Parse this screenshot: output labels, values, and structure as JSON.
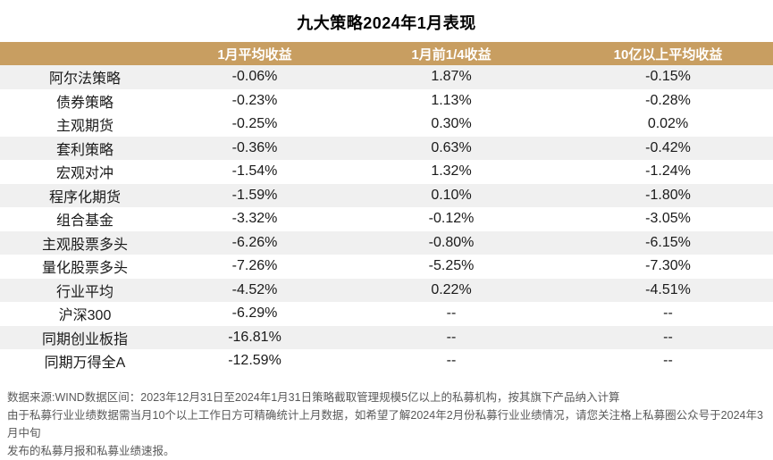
{
  "title": "九大策略2024年1月表现",
  "chart_data": {
    "type": "table",
    "title": "九大策略2024年1月表现",
    "columns": [
      "",
      "1月平均收益",
      "1月前1/4收益",
      "10亿以上平均收益"
    ],
    "rows": [
      {
        "name": "阿尔法策略",
        "values": [
          "-0.06%",
          "1.87%",
          "-0.15%"
        ],
        "striped": true
      },
      {
        "name": "债券策略",
        "values": [
          "-0.23%",
          "1.13%",
          "-0.28%"
        ],
        "striped": false
      },
      {
        "name": "主观期货",
        "values": [
          "-0.25%",
          "0.30%",
          "0.02%"
        ],
        "striped": false
      },
      {
        "name": "套利策略",
        "values": [
          "-0.36%",
          "0.63%",
          "-0.42%"
        ],
        "striped": true
      },
      {
        "name": "宏观对冲",
        "values": [
          "-1.54%",
          "1.32%",
          "-1.24%"
        ],
        "striped": false
      },
      {
        "name": "程序化期货",
        "values": [
          "-1.59%",
          "0.10%",
          "-1.80%"
        ],
        "striped": true
      },
      {
        "name": "组合基金",
        "values": [
          "-3.32%",
          "-0.12%",
          "-3.05%"
        ],
        "striped": false
      },
      {
        "name": "主观股票多头",
        "values": [
          "-6.26%",
          "-0.80%",
          "-6.15%"
        ],
        "striped": true
      },
      {
        "name": "量化股票多头",
        "values": [
          "-7.26%",
          "-5.25%",
          "-7.30%"
        ],
        "striped": false
      },
      {
        "name": "行业平均",
        "values": [
          "-4.52%",
          "0.22%",
          "-4.51%"
        ],
        "striped": true
      },
      {
        "name": "沪深300",
        "values": [
          "-6.29%",
          "--",
          "--"
        ],
        "striped": false
      },
      {
        "name": "同期创业板指",
        "values": [
          "-16.81%",
          "--",
          "--"
        ],
        "striped": true
      },
      {
        "name": "同期万得全A",
        "values": [
          "-12.59%",
          "--",
          "--"
        ],
        "striped": false
      }
    ]
  },
  "footer": {
    "lines": [
      "数据来源:WIND数据区间：2023年12月31日至2024年1月31日策略截取管理规模5亿以上的私募机构，按其旗下产品纳入计算",
      "由于私募行业业绩数据需当月10个以上工作日方可精确统计上月数据，如希望了解2024年2月份私募行业业绩情况，请您关注格上私募圈公众号于2024年3月中旬",
      "发布的私募月报和私募业绩速报。"
    ]
  },
  "colors": {
    "header_bg": "#C89E61",
    "stripe_bg": "#F0F0F0",
    "footer_text": "#595959"
  }
}
